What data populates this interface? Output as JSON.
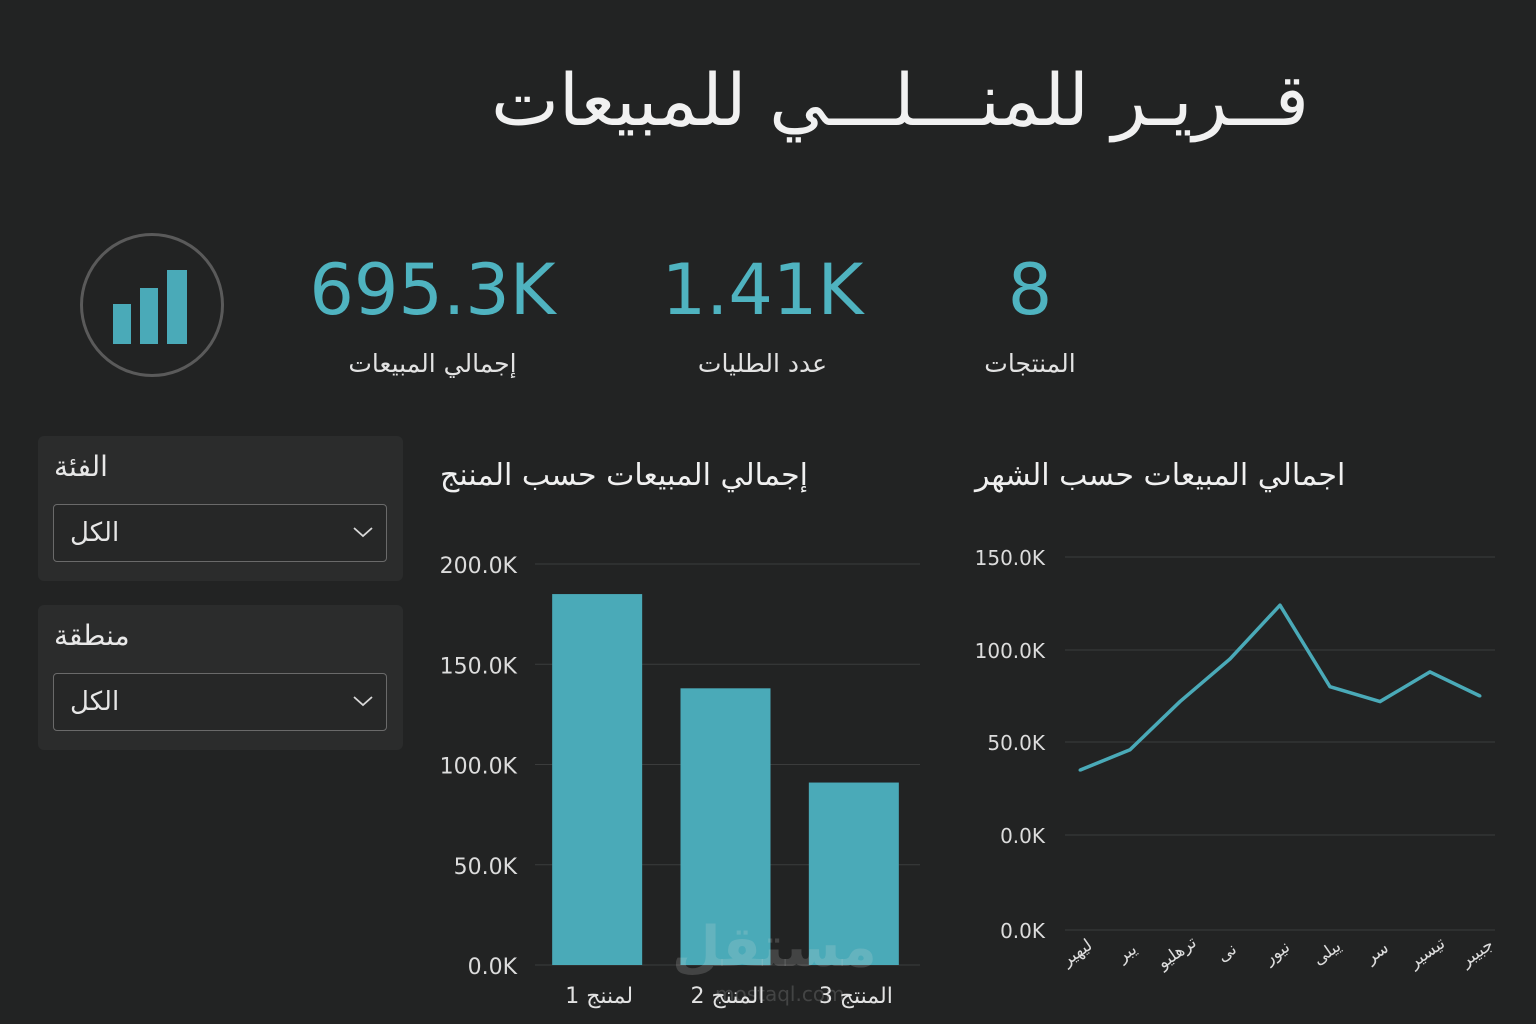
{
  "header": {
    "title": "قــريـر للمنـــلـــي للمبيعات"
  },
  "icons": {
    "logo": "bar-chart-icon",
    "dropdown": "chevron-down-icon"
  },
  "colors": {
    "accent": "#4aaab8",
    "background": "#222323",
    "card": "#2b2c2c"
  },
  "kpis": [
    {
      "value": "695.3K",
      "label": "إجمالي المبيعات"
    },
    {
      "value": "1.41K",
      "label": "عدد الطليات"
    },
    {
      "value": "8",
      "label": "المنتجات"
    }
  ],
  "filters": [
    {
      "title": "الفئة",
      "selected": "الكل"
    },
    {
      "title": "منطقة",
      "selected": "الكل"
    }
  ],
  "watermark": {
    "text": "مستقل",
    "sub": "mostaql.com"
  },
  "chart_data": [
    {
      "type": "bar",
      "title": "إجمالي المبيعات حسب المننج",
      "categories": [
        "لمننج 1",
        "المننج 2",
        "المنتج 3"
      ],
      "values": [
        185000,
        138000,
        91000
      ],
      "ylim": [
        0,
        200000
      ],
      "yticks": [
        "0.0K",
        "50.0K",
        "100.0K",
        "150.0K",
        "200.0K"
      ],
      "grid": true
    },
    {
      "type": "line",
      "title": "اجمالي المبيعات حسب الشهر",
      "categories": [
        "ليهير",
        "يبر",
        "ترهليو",
        "نى",
        "نيور",
        "ييلى",
        "سر",
        "تيسير",
        "جبيبر"
      ],
      "values": [
        35000,
        46000,
        72000,
        95000,
        124000,
        80000,
        72000,
        88000,
        75000
      ],
      "ylim": [
        0,
        150000
      ],
      "yticks": [
        "0.0K",
        "0.0K",
        "50.0K",
        "100.0K",
        "150.0K"
      ],
      "grid": true
    }
  ]
}
